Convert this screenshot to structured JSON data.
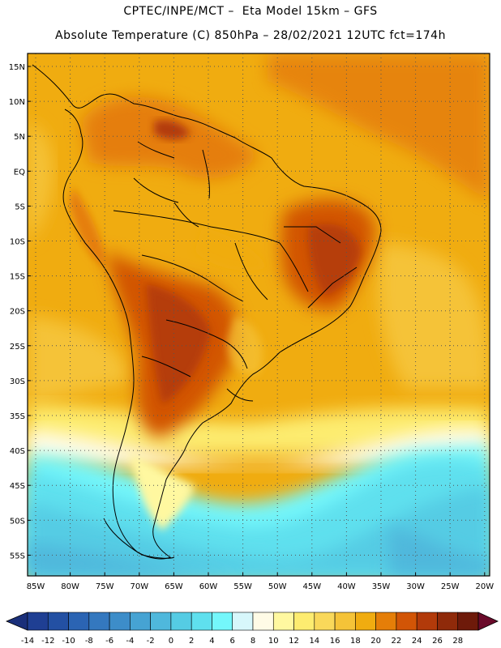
{
  "title_line1": "CPTEC/INPE/MCT –  Eta Model 15km – GFS",
  "title_line2": "Absolute Temperature (C) 850hPa – 28/02/2021 12UTC fct=174h",
  "lat_labels": [
    "15N",
    "10N",
    "5N",
    "EQ",
    "5S",
    "10S",
    "15S",
    "20S",
    "25S",
    "30S",
    "35S",
    "40S",
    "45S",
    "50S",
    "55S"
  ],
  "lon_labels": [
    "85W",
    "80W",
    "75W",
    "70W",
    "65W",
    "60W",
    "55W",
    "50W",
    "45W",
    "40W",
    "35W",
    "30W",
    "25W",
    "20W"
  ],
  "colorbar": {
    "labels": [
      "-14",
      "-12",
      "-10",
      "-8",
      "-6",
      "-4",
      "-2",
      "0",
      "2",
      "4",
      "6",
      "8",
      "10",
      "12",
      "14",
      "16",
      "18",
      "20",
      "22",
      "24",
      "26",
      "28"
    ],
    "colors": [
      "#1f3f93",
      "#2350a3",
      "#2b64b3",
      "#3478bf",
      "#3d8dc9",
      "#46a3d3",
      "#4fb8dc",
      "#55cce4",
      "#5fe0ee",
      "#74f7fb",
      "#d7f7fb",
      "#fffbe6",
      "#fff8a0",
      "#fdec70",
      "#f9d85a",
      "#f5c338",
      "#f0ac10",
      "#e57e08",
      "#d25506",
      "#b23a0a",
      "#8f2a0a",
      "#6e1a0a"
    ],
    "end_low": "#1a2f7a",
    "end_high": "#6a0a2a"
  }
}
